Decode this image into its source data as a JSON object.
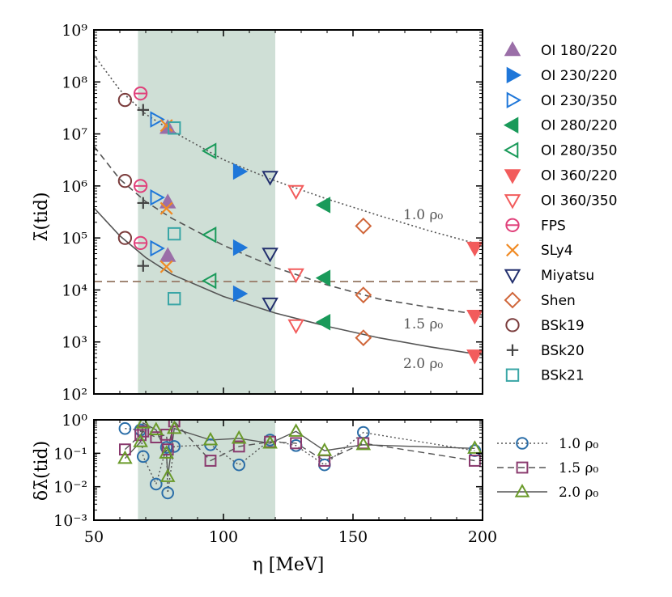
{
  "chart_data": [
    {
      "type": "scatter",
      "panel": "top",
      "title": "",
      "xlabel": "η [MeV]",
      "ylabel": "λ̄(tid)",
      "yscale": "log",
      "xlim": [
        50,
        200
      ],
      "ylim": [
        100,
        1000000000
      ],
      "x_ticks": [
        "50",
        "100",
        "150",
        "200"
      ],
      "y_ticks": [
        "10²",
        "10³",
        "10⁴",
        "10⁵",
        "10⁶",
        "10⁷",
        "10⁸",
        "10⁹"
      ],
      "shaded_region": {
        "x_from": 67,
        "x_to": 120,
        "color": "#cfdfd6"
      },
      "reference_line": {
        "y": 14500,
        "style": "dashed",
        "color": "#9b7f6c"
      },
      "curves": [
        {
          "name": "1.0 ρ0",
          "label": "1.0 ρ₀",
          "style": "dotted",
          "color": "#555555",
          "x": [
            50,
            60,
            70,
            80,
            100,
            120,
            140,
            160,
            180,
            200
          ],
          "y": [
            330000000,
            70000000,
            24000000,
            11500000,
            3200000,
            1250000,
            560000,
            270000,
            135000,
            72000
          ]
        },
        {
          "name": "1.5 ρ0",
          "label": "1.5 ρ₀",
          "style": "dashed",
          "color": "#555555",
          "x": [
            50,
            60,
            70,
            80,
            100,
            120,
            140,
            160,
            180,
            200
          ],
          "y": [
            5800000,
            1350000,
            500000,
            240000,
            72000,
            27000,
            12500,
            6700,
            4600,
            3300
          ]
        },
        {
          "name": "2.0 ρ0",
          "label": "2.0 ρ₀",
          "style": "solid",
          "color": "#555555",
          "x": [
            50,
            60,
            70,
            80,
            100,
            120,
            140,
            160,
            180,
            200
          ],
          "y": [
            380000,
            110000,
            42000,
            20000,
            7500,
            3600,
            2000,
            1200,
            800,
            560
          ]
        }
      ],
      "series": [
        {
          "name": "OI 180/220",
          "label": "OI 180/220",
          "marker": "tri-up",
          "fill": true,
          "color": "#9b6fa8",
          "x": [
            78.5,
            78.5,
            78.5
          ],
          "y": [
            13000000,
            480000,
            45000
          ]
        },
        {
          "name": "OI 230/220",
          "label": "OI 230/220",
          "marker": "tri-right",
          "fill": true,
          "color": "#1f77d9",
          "x": [
            106,
            106,
            106
          ],
          "y": [
            1900000,
            65000,
            8500
          ]
        },
        {
          "name": "OI 230/350",
          "label": "OI 230/350",
          "marker": "tri-right",
          "fill": false,
          "color": "#1f77d9",
          "x": [
            74,
            74,
            74
          ],
          "y": [
            19000000,
            600000,
            63000
          ]
        },
        {
          "name": "OI 280/220",
          "label": "OI 280/220",
          "marker": "tri-left",
          "fill": true,
          "color": "#1a9a5a",
          "x": [
            139,
            139,
            139
          ],
          "y": [
            430000,
            17000,
            2400
          ]
        },
        {
          "name": "OI 280/350",
          "label": "OI 280/350",
          "marker": "tri-left",
          "fill": false,
          "color": "#1a9a5a",
          "x": [
            95,
            95,
            95
          ],
          "y": [
            4700000,
            115000,
            15000
          ]
        },
        {
          "name": "OI 360/220",
          "label": "OI 360/220",
          "marker": "tri-down",
          "fill": true,
          "color": "#f25c5c",
          "x": [
            197,
            197,
            197
          ],
          "y": [
            65000,
            3200,
            550
          ]
        },
        {
          "name": "OI 360/350",
          "label": "OI 360/350",
          "marker": "tri-down",
          "fill": false,
          "color": "#f25c5c",
          "x": [
            128,
            128,
            128
          ],
          "y": [
            800000,
            20000,
            2100
          ]
        },
        {
          "name": "FPS",
          "label": "FPS",
          "marker": "circle-bar",
          "fill": false,
          "color": "#e0407a",
          "x": [
            68,
            68,
            68
          ],
          "y": [
            60000000,
            1000000,
            80000
          ]
        },
        {
          "name": "SLy4",
          "label": "SLy4",
          "marker": "x",
          "fill": false,
          "color": "#f08a24",
          "x": [
            78,
            78,
            78
          ],
          "y": [
            14500000,
            370000,
            28000
          ]
        },
        {
          "name": "Miyatsu",
          "label": "Miyatsu",
          "marker": "tri-down",
          "fill": false,
          "color": "#23306e",
          "x": [
            118,
            118,
            118
          ],
          "y": [
            1500000,
            50000,
            5500
          ]
        },
        {
          "name": "Shen",
          "label": "Shen",
          "marker": "diamond",
          "fill": false,
          "color": "#d0663a",
          "x": [
            154,
            154,
            154
          ],
          "y": [
            170000,
            8000,
            1200
          ]
        },
        {
          "name": "BSk19",
          "label": "BSk19",
          "marker": "circle",
          "fill": false,
          "color": "#7a3b3b",
          "x": [
            62,
            62,
            62
          ],
          "y": [
            45000000,
            1250000,
            100000
          ]
        },
        {
          "name": "BSk20",
          "label": "BSk20",
          "marker": "plus",
          "fill": false,
          "color": "#444444",
          "x": [
            69,
            69,
            69
          ],
          "y": [
            29000000,
            470000,
            29000
          ]
        },
        {
          "name": "BSk21",
          "label": "BSk21",
          "marker": "square",
          "fill": false,
          "color": "#3aa6a6",
          "x": [
            81,
            81,
            81
          ],
          "y": [
            13000000,
            120000,
            6800
          ]
        }
      ],
      "curve_labels": [
        "1.0 ρ₀",
        "1.5 ρ₀",
        "2.0 ρ₀"
      ]
    },
    {
      "type": "line",
      "panel": "bottom",
      "xlabel": "η [MeV]",
      "ylabel": "δλ̄(tid)",
      "yscale": "log",
      "xlim": [
        50,
        200
      ],
      "ylim": [
        0.001,
        1
      ],
      "x_ticks": [
        "50",
        "100",
        "150",
        "200"
      ],
      "y_ticks": [
        "10⁻³",
        "10⁻²",
        "10⁻¹",
        "10⁰"
      ],
      "shaded_region": {
        "x_from": 67,
        "x_to": 120,
        "color": "#cfdfd6"
      },
      "series": [
        {
          "name": "1.0 ρ0",
          "label": "1.0 ρ₀",
          "marker": "circle",
          "color": "#2b6ea8",
          "linestyle": "dotted",
          "x": [
            62,
            68,
            69,
            74,
            78,
            78.5,
            81,
            95,
            106,
            118,
            128,
            139,
            154,
            197
          ],
          "y": [
            0.55,
            0.5,
            0.08,
            0.012,
            0.15,
            0.0065,
            0.16,
            0.18,
            0.045,
            0.25,
            0.17,
            0.045,
            0.42,
            0.12
          ]
        },
        {
          "name": "1.5 ρ0",
          "label": "1.5 ρ₀",
          "marker": "square",
          "color": "#8a3a6e",
          "linestyle": "dashed",
          "x": [
            62,
            68,
            69,
            74,
            78,
            78.5,
            81,
            95,
            106,
            118,
            128,
            139,
            154,
            197
          ],
          "y": [
            0.13,
            0.35,
            0.45,
            0.3,
            0.36,
            0.13,
            0.9,
            0.06,
            0.16,
            0.22,
            0.2,
            0.06,
            0.2,
            0.06
          ]
        },
        {
          "name": "2.0 ρ0",
          "label": "2.0 ρ₀",
          "marker": "tri-up",
          "color": "#6a9a2a",
          "linestyle": "solid",
          "x": [
            62,
            68,
            69,
            74,
            78,
            78.5,
            81,
            95,
            106,
            118,
            128,
            139,
            154,
            197
          ],
          "y": [
            0.07,
            0.22,
            0.8,
            0.5,
            0.1,
            0.02,
            0.55,
            0.25,
            0.28,
            0.2,
            0.45,
            0.12,
            0.18,
            0.14
          ]
        }
      ]
    }
  ]
}
